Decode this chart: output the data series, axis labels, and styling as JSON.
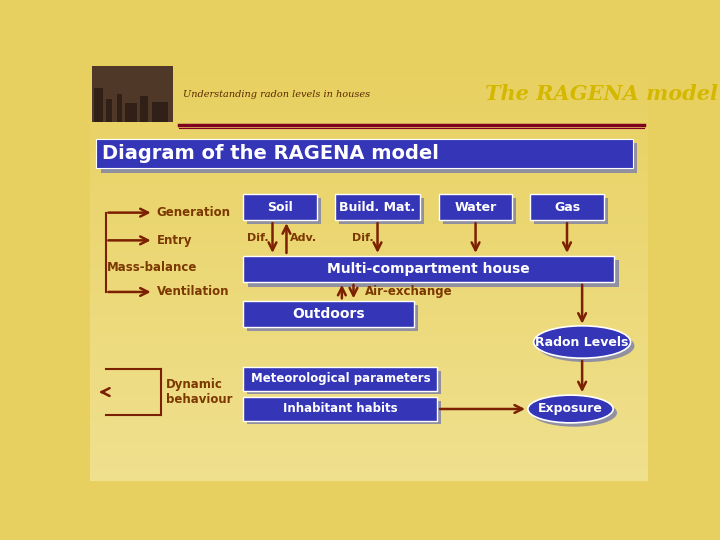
{
  "bg_color": "#E8D060",
  "title_text": "The RAGENA model",
  "subtitle_text": "Understanding radon levels in houses",
  "diagram_title": "Diagram of the RAGENA model",
  "blue_box": "#3535B8",
  "arrow_color": "#7B2000",
  "label_color": "#7B3800",
  "white": "#FFFFFF",
  "shadow_color": "#9090A0",
  "divider_color": "#800020",
  "header_img_color": "#503828",
  "generation_boxes": [
    "Soil",
    "Build. Mat.",
    "Water",
    "Gas"
  ],
  "left_labels": [
    "Generation",
    "Entry",
    "Mass-balance",
    "Ventilation"
  ],
  "mass_box_text": "Multi-compartment house",
  "outdoors_text": "Outdoors",
  "airexchange_text": "Air-exchange",
  "radon_text": "Radon Levels",
  "dynamic_text": "Dynamic\nbehaviour",
  "met_text": "Meteorological parameters",
  "inhab_text": "Inhabitant habits",
  "exposure_text": "Exposure",
  "title_color": "#D4B800"
}
